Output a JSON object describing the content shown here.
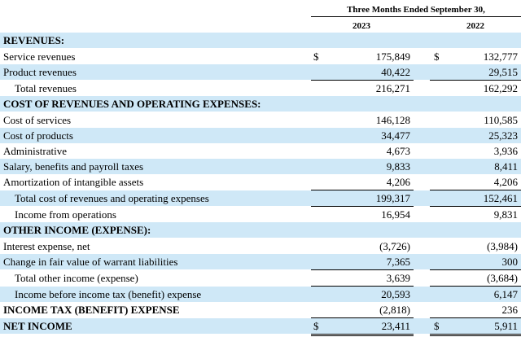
{
  "header": {
    "period": "Three Months Ended September 30,",
    "year1": "2023",
    "year2": "2022"
  },
  "rows": [
    {
      "label": "REVENUES:",
      "v1": "",
      "v2": "",
      "dollar": false
    },
    {
      "label": "Service revenues",
      "v1": "175,849",
      "v2": "132,777",
      "dollar": true
    },
    {
      "label": "Product revenues",
      "v1": "40,422",
      "v2": "29,515",
      "dollar": false
    },
    {
      "label": "Total revenues",
      "v1": "216,271",
      "v2": "162,292",
      "dollar": false
    },
    {
      "label": "COST OF REVENUES AND OPERATING EXPENSES:",
      "v1": "",
      "v2": "",
      "dollar": false
    },
    {
      "label": "Cost of services",
      "v1": "146,128",
      "v2": "110,585",
      "dollar": false
    },
    {
      "label": "Cost of products",
      "v1": "34,477",
      "v2": "25,323",
      "dollar": false
    },
    {
      "label": "Administrative",
      "v1": "4,673",
      "v2": "3,936",
      "dollar": false
    },
    {
      "label": "Salary, benefits and payroll taxes",
      "v1": "9,833",
      "v2": "8,411",
      "dollar": false
    },
    {
      "label": "Amortization of intangible assets",
      "v1": "4,206",
      "v2": "4,206",
      "dollar": false
    },
    {
      "label": "Total cost of revenues and operating expenses",
      "v1": "199,317",
      "v2": "152,461",
      "dollar": false
    },
    {
      "label": "Income from operations",
      "v1": "16,954",
      "v2": "9,831",
      "dollar": false
    },
    {
      "label": "OTHER INCOME (EXPENSE):",
      "v1": "",
      "v2": "",
      "dollar": false
    },
    {
      "label": "Interest expense, net",
      "v1": "(3,726",
      "v2": "(3,984",
      "dollar": false
    },
    {
      "label": "Change in fair value of warrant liabilities",
      "v1": "7,365",
      "v2": "300",
      "dollar": false
    },
    {
      "label": "Total other income (expense)",
      "v1": "3,639",
      "v2": "(3,684",
      "dollar": false
    },
    {
      "label": "Income before income tax (benefit) expense",
      "v1": "20,593",
      "v2": "6,147",
      "dollar": false
    },
    {
      "label": "INCOME TAX (BENEFIT) EXPENSE",
      "v1": "(2,818",
      "v2": "236",
      "dollar": false
    },
    {
      "label": "NET INCOME",
      "v1": "23,411",
      "v2": "5,911",
      "dollar": true
    }
  ],
  "currency_symbol": "$",
  "close_paren": ")"
}
